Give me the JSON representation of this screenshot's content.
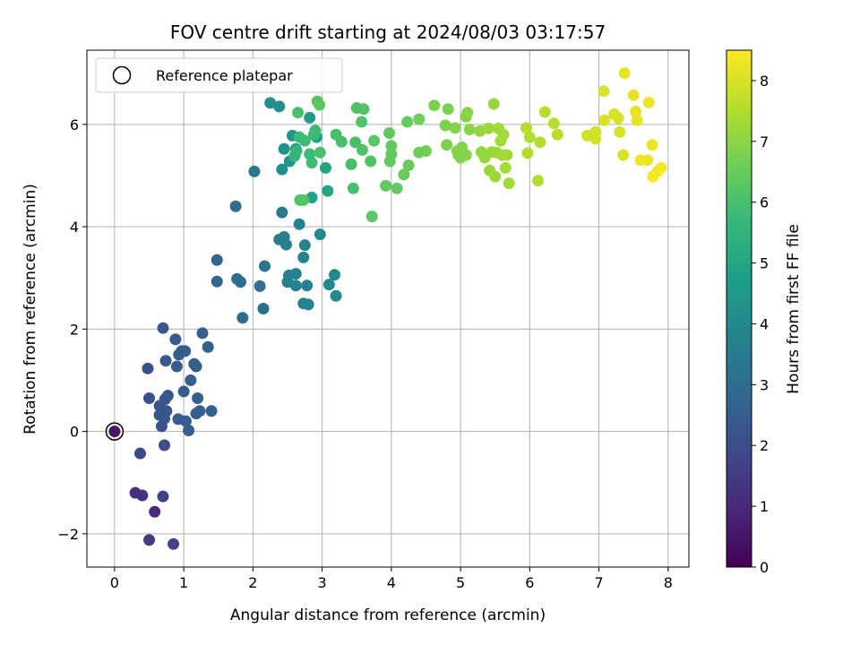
{
  "chart_data": {
    "type": "scatter",
    "title": "FOV centre drift starting at 2024/08/03 03:17:57",
    "xlabel": "Angular distance from reference (arcmin)",
    "ylabel": "Rotation from reference (arcmin)",
    "xlim": [
      -0.4,
      8.3
    ],
    "ylim": [
      -2.65,
      7.45
    ],
    "xticks": [
      0,
      1,
      2,
      3,
      4,
      5,
      6,
      7,
      8
    ],
    "yticks": [
      -2,
      0,
      2,
      4,
      6
    ],
    "xtick_labels": [
      "0",
      "1",
      "2",
      "3",
      "4",
      "5",
      "6",
      "7",
      "8"
    ],
    "ytick_labels": [
      "−2",
      "0",
      "2",
      "4",
      "6"
    ],
    "grid": true,
    "legend": {
      "placement": "top-left",
      "entries": [
        "Reference platepar"
      ]
    },
    "reference_point": {
      "x": 0,
      "y": 0
    },
    "colorbar": {
      "label": "Hours from first FF file",
      "colormap": "viridis",
      "range": [
        0,
        8.5
      ],
      "ticks": [
        0,
        1,
        2,
        3,
        4,
        5,
        6,
        7,
        8
      ],
      "tick_labels": [
        "0",
        "1",
        "2",
        "3",
        "4",
        "5",
        "6",
        "7",
        "8"
      ],
      "colors": [
        "#440154",
        "#482878",
        "#3e4989",
        "#31688e",
        "#26828e",
        "#1f9e89",
        "#35b779",
        "#6ece58",
        "#b5de2b",
        "#fde725"
      ]
    },
    "points": [
      {
        "x": 0.0,
        "y": 0.0,
        "c": 0.5
      },
      {
        "x": 0.3,
        "y": -1.2,
        "c": 1.2
      },
      {
        "x": 0.4,
        "y": -1.25,
        "c": 1.2
      },
      {
        "x": 0.58,
        "y": -1.57,
        "c": 1.0
      },
      {
        "x": 0.5,
        "y": -2.12,
        "c": 1.5
      },
      {
        "x": 0.7,
        "y": -1.27,
        "c": 1.7
      },
      {
        "x": 0.85,
        "y": -2.2,
        "c": 1.8
      },
      {
        "x": 0.37,
        "y": -0.43,
        "c": 1.9
      },
      {
        "x": 0.72,
        "y": -0.27,
        "c": 2.0
      },
      {
        "x": 0.48,
        "y": 1.23,
        "c": 2.1
      },
      {
        "x": 0.5,
        "y": 0.65,
        "c": 2.1
      },
      {
        "x": 0.65,
        "y": 0.5,
        "c": 2.2
      },
      {
        "x": 0.65,
        "y": 0.32,
        "c": 2.2
      },
      {
        "x": 0.68,
        "y": 0.1,
        "c": 2.2
      },
      {
        "x": 0.72,
        "y": 0.25,
        "c": 2.3
      },
      {
        "x": 0.75,
        "y": 0.4,
        "c": 2.3
      },
      {
        "x": 0.77,
        "y": 0.7,
        "c": 2.3
      },
      {
        "x": 0.73,
        "y": 0.63,
        "c": 2.3
      },
      {
        "x": 0.7,
        "y": 2.02,
        "c": 2.4
      },
      {
        "x": 0.74,
        "y": 1.38,
        "c": 2.4
      },
      {
        "x": 0.88,
        "y": 1.8,
        "c": 2.4
      },
      {
        "x": 0.9,
        "y": 1.27,
        "c": 2.5
      },
      {
        "x": 0.93,
        "y": 1.5,
        "c": 2.5
      },
      {
        "x": 0.97,
        "y": 1.57,
        "c": 2.5
      },
      {
        "x": 1.02,
        "y": 1.57,
        "c": 2.5
      },
      {
        "x": 0.92,
        "y": 0.24,
        "c": 2.5
      },
      {
        "x": 1.0,
        "y": 0.78,
        "c": 2.5
      },
      {
        "x": 1.03,
        "y": 0.2,
        "c": 2.5
      },
      {
        "x": 1.07,
        "y": 0.02,
        "c": 2.5
      },
      {
        "x": 1.1,
        "y": 1.0,
        "c": 2.6
      },
      {
        "x": 1.15,
        "y": 1.32,
        "c": 2.6
      },
      {
        "x": 1.18,
        "y": 1.27,
        "c": 2.6
      },
      {
        "x": 1.18,
        "y": 0.35,
        "c": 2.6
      },
      {
        "x": 1.2,
        "y": 0.65,
        "c": 2.6
      },
      {
        "x": 1.23,
        "y": 0.4,
        "c": 2.6
      },
      {
        "x": 1.27,
        "y": 1.92,
        "c": 2.6
      },
      {
        "x": 1.35,
        "y": 1.65,
        "c": 2.6
      },
      {
        "x": 1.4,
        "y": 0.4,
        "c": 2.6
      },
      {
        "x": 1.48,
        "y": 3.35,
        "c": 2.8
      },
      {
        "x": 1.48,
        "y": 2.93,
        "c": 2.8
      },
      {
        "x": 1.75,
        "y": 4.4,
        "c": 3.0
      },
      {
        "x": 1.77,
        "y": 2.98,
        "c": 3.0
      },
      {
        "x": 1.82,
        "y": 2.92,
        "c": 3.0
      },
      {
        "x": 1.85,
        "y": 2.22,
        "c": 3.0
      },
      {
        "x": 2.1,
        "y": 2.84,
        "c": 3.1
      },
      {
        "x": 2.17,
        "y": 3.23,
        "c": 3.2
      },
      {
        "x": 2.15,
        "y": 2.4,
        "c": 3.1
      },
      {
        "x": 2.02,
        "y": 5.08,
        "c": 3.4
      },
      {
        "x": 2.42,
        "y": 4.28,
        "c": 3.5
      },
      {
        "x": 2.38,
        "y": 3.75,
        "c": 3.6
      },
      {
        "x": 2.45,
        "y": 3.8,
        "c": 3.6
      },
      {
        "x": 2.48,
        "y": 3.65,
        "c": 3.6
      },
      {
        "x": 2.5,
        "y": 2.92,
        "c": 3.7
      },
      {
        "x": 2.52,
        "y": 3.05,
        "c": 3.7
      },
      {
        "x": 2.62,
        "y": 3.08,
        "c": 3.7
      },
      {
        "x": 2.62,
        "y": 2.85,
        "c": 3.8
      },
      {
        "x": 2.67,
        "y": 4.05,
        "c": 3.8
      },
      {
        "x": 2.73,
        "y": 3.4,
        "c": 3.8
      },
      {
        "x": 2.75,
        "y": 3.64,
        "c": 3.8
      },
      {
        "x": 2.73,
        "y": 2.5,
        "c": 3.8
      },
      {
        "x": 2.78,
        "y": 2.85,
        "c": 3.8
      },
      {
        "x": 2.8,
        "y": 2.48,
        "c": 3.8
      },
      {
        "x": 2.97,
        "y": 3.85,
        "c": 4.0
      },
      {
        "x": 3.1,
        "y": 2.87,
        "c": 4.0
      },
      {
        "x": 3.18,
        "y": 3.06,
        "c": 4.0
      },
      {
        "x": 3.2,
        "y": 2.65,
        "c": 4.0
      },
      {
        "x": 2.25,
        "y": 6.42,
        "c": 4.1
      },
      {
        "x": 2.38,
        "y": 6.35,
        "c": 4.2
      },
      {
        "x": 2.42,
        "y": 5.12,
        "c": 4.2
      },
      {
        "x": 2.45,
        "y": 5.52,
        "c": 4.3
      },
      {
        "x": 2.53,
        "y": 5.28,
        "c": 4.4
      },
      {
        "x": 2.57,
        "y": 5.78,
        "c": 4.5
      },
      {
        "x": 2.62,
        "y": 5.52,
        "c": 4.5
      },
      {
        "x": 2.82,
        "y": 6.13,
        "c": 4.6
      },
      {
        "x": 2.85,
        "y": 4.57,
        "c": 4.8
      },
      {
        "x": 2.92,
        "y": 5.75,
        "c": 4.8
      },
      {
        "x": 3.05,
        "y": 5.15,
        "c": 5.0
      },
      {
        "x": 3.08,
        "y": 4.7,
        "c": 5.0
      },
      {
        "x": 2.6,
        "y": 5.38,
        "c": 5.6
      },
      {
        "x": 2.63,
        "y": 5.48,
        "c": 5.6
      },
      {
        "x": 2.67,
        "y": 5.75,
        "c": 5.8
      },
      {
        "x": 2.65,
        "y": 6.23,
        "c": 6.0
      },
      {
        "x": 2.68,
        "y": 4.52,
        "c": 6.2
      },
      {
        "x": 2.73,
        "y": 4.52,
        "c": 6.2
      },
      {
        "x": 2.75,
        "y": 5.68,
        "c": 5.8
      },
      {
        "x": 2.82,
        "y": 5.42,
        "c": 5.8
      },
      {
        "x": 2.85,
        "y": 5.25,
        "c": 5.8
      },
      {
        "x": 2.88,
        "y": 5.8,
        "c": 5.8
      },
      {
        "x": 2.9,
        "y": 5.88,
        "c": 5.8
      },
      {
        "x": 2.93,
        "y": 6.45,
        "c": 6.2
      },
      {
        "x": 2.96,
        "y": 6.38,
        "c": 6.3
      },
      {
        "x": 2.97,
        "y": 5.45,
        "c": 6.0
      },
      {
        "x": 3.2,
        "y": 5.8,
        "c": 6.0
      },
      {
        "x": 3.28,
        "y": 5.66,
        "c": 6.0
      },
      {
        "x": 3.42,
        "y": 5.22,
        "c": 6.0
      },
      {
        "x": 3.45,
        "y": 4.75,
        "c": 6.0
      },
      {
        "x": 3.48,
        "y": 5.65,
        "c": 6.0
      },
      {
        "x": 3.5,
        "y": 6.32,
        "c": 6.1
      },
      {
        "x": 3.57,
        "y": 6.05,
        "c": 6.1
      },
      {
        "x": 3.6,
        "y": 6.3,
        "c": 6.1
      },
      {
        "x": 3.58,
        "y": 5.5,
        "c": 6.1
      },
      {
        "x": 3.7,
        "y": 5.28,
        "c": 6.1
      },
      {
        "x": 3.72,
        "y": 4.2,
        "c": 6.3
      },
      {
        "x": 3.75,
        "y": 5.68,
        "c": 6.3
      },
      {
        "x": 3.92,
        "y": 4.8,
        "c": 6.4
      },
      {
        "x": 3.97,
        "y": 5.83,
        "c": 6.4
      },
      {
        "x": 3.98,
        "y": 5.28,
        "c": 6.4
      },
      {
        "x": 4.0,
        "y": 5.58,
        "c": 6.4
      },
      {
        "x": 4.0,
        "y": 5.42,
        "c": 6.4
      },
      {
        "x": 4.08,
        "y": 4.75,
        "c": 6.4
      },
      {
        "x": 4.18,
        "y": 5.02,
        "c": 6.5
      },
      {
        "x": 4.23,
        "y": 6.05,
        "c": 6.5
      },
      {
        "x": 4.25,
        "y": 5.2,
        "c": 6.5
      },
      {
        "x": 4.4,
        "y": 6.1,
        "c": 6.6
      },
      {
        "x": 4.4,
        "y": 5.45,
        "c": 6.6
      },
      {
        "x": 4.5,
        "y": 5.48,
        "c": 6.6
      },
      {
        "x": 4.62,
        "y": 6.37,
        "c": 6.8
      },
      {
        "x": 4.78,
        "y": 5.98,
        "c": 6.8
      },
      {
        "x": 4.8,
        "y": 5.6,
        "c": 6.8
      },
      {
        "x": 4.82,
        "y": 6.3,
        "c": 6.8
      },
      {
        "x": 4.92,
        "y": 5.93,
        "c": 6.9
      },
      {
        "x": 4.95,
        "y": 5.48,
        "c": 6.9
      },
      {
        "x": 4.97,
        "y": 5.4,
        "c": 6.9
      },
      {
        "x": 5.0,
        "y": 5.35,
        "c": 6.9
      },
      {
        "x": 5.02,
        "y": 5.55,
        "c": 6.9
      },
      {
        "x": 5.08,
        "y": 5.4,
        "c": 6.9
      },
      {
        "x": 5.08,
        "y": 6.15,
        "c": 6.9
      },
      {
        "x": 5.1,
        "y": 6.23,
        "c": 7.0
      },
      {
        "x": 5.13,
        "y": 5.9,
        "c": 7.0
      },
      {
        "x": 5.28,
        "y": 5.87,
        "c": 7.1
      },
      {
        "x": 5.3,
        "y": 5.46,
        "c": 7.1
      },
      {
        "x": 5.35,
        "y": 5.35,
        "c": 7.1
      },
      {
        "x": 5.4,
        "y": 5.92,
        "c": 7.2
      },
      {
        "x": 5.42,
        "y": 5.1,
        "c": 7.2
      },
      {
        "x": 5.45,
        "y": 5.46,
        "c": 7.2
      },
      {
        "x": 5.48,
        "y": 6.4,
        "c": 7.1
      },
      {
        "x": 5.5,
        "y": 4.98,
        "c": 7.2
      },
      {
        "x": 5.52,
        "y": 5.45,
        "c": 7.2
      },
      {
        "x": 5.55,
        "y": 5.92,
        "c": 7.3
      },
      {
        "x": 5.58,
        "y": 5.68,
        "c": 7.3
      },
      {
        "x": 5.6,
        "y": 5.4,
        "c": 7.3
      },
      {
        "x": 5.62,
        "y": 5.8,
        "c": 7.3
      },
      {
        "x": 5.65,
        "y": 5.15,
        "c": 7.3
      },
      {
        "x": 5.67,
        "y": 5.4,
        "c": 7.3
      },
      {
        "x": 5.7,
        "y": 4.85,
        "c": 7.3
      },
      {
        "x": 5.95,
        "y": 5.93,
        "c": 7.5
      },
      {
        "x": 5.97,
        "y": 5.44,
        "c": 7.5
      },
      {
        "x": 6.0,
        "y": 5.75,
        "c": 7.5
      },
      {
        "x": 6.12,
        "y": 4.9,
        "c": 7.5
      },
      {
        "x": 6.15,
        "y": 5.65,
        "c": 7.5
      },
      {
        "x": 6.22,
        "y": 6.24,
        "c": 7.6
      },
      {
        "x": 6.35,
        "y": 6.02,
        "c": 7.6
      },
      {
        "x": 6.4,
        "y": 5.8,
        "c": 7.6
      },
      {
        "x": 6.83,
        "y": 5.78,
        "c": 7.9
      },
      {
        "x": 6.92,
        "y": 5.8,
        "c": 7.9
      },
      {
        "x": 6.95,
        "y": 5.85,
        "c": 7.9
      },
      {
        "x": 6.95,
        "y": 5.72,
        "c": 7.9
      },
      {
        "x": 7.07,
        "y": 6.65,
        "c": 8.0
      },
      {
        "x": 7.08,
        "y": 6.08,
        "c": 8.0
      },
      {
        "x": 7.22,
        "y": 6.2,
        "c": 8.0
      },
      {
        "x": 7.28,
        "y": 6.12,
        "c": 8.0
      },
      {
        "x": 7.3,
        "y": 5.85,
        "c": 8.0
      },
      {
        "x": 7.35,
        "y": 5.4,
        "c": 8.0
      },
      {
        "x": 7.37,
        "y": 7.0,
        "c": 8.2
      },
      {
        "x": 7.5,
        "y": 6.57,
        "c": 8.2
      },
      {
        "x": 7.53,
        "y": 6.25,
        "c": 8.2
      },
      {
        "x": 7.55,
        "y": 6.08,
        "c": 8.2
      },
      {
        "x": 7.6,
        "y": 5.3,
        "c": 8.3
      },
      {
        "x": 7.72,
        "y": 6.43,
        "c": 8.3
      },
      {
        "x": 7.7,
        "y": 5.3,
        "c": 8.3
      },
      {
        "x": 7.77,
        "y": 5.6,
        "c": 8.3
      },
      {
        "x": 7.78,
        "y": 4.98,
        "c": 8.4
      },
      {
        "x": 7.85,
        "y": 5.08,
        "c": 8.4
      },
      {
        "x": 7.9,
        "y": 5.15,
        "c": 8.4
      }
    ]
  }
}
